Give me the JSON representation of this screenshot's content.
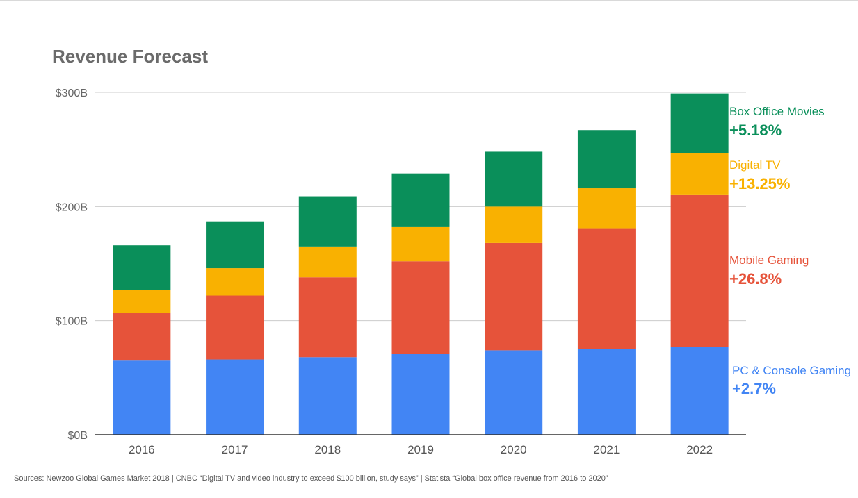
{
  "chart_data": {
    "type": "bar",
    "stacked": true,
    "title": "Revenue Forecast",
    "categories": [
      "2016",
      "2017",
      "2018",
      "2019",
      "2020",
      "2021",
      "2022"
    ],
    "ylim": [
      0,
      300
    ],
    "yticks": [
      {
        "value": 0,
        "label": "$0B"
      },
      {
        "value": 100,
        "label": "$100B"
      },
      {
        "value": 200,
        "label": "$200B"
      },
      {
        "value": 300,
        "label": "$300B"
      }
    ],
    "grid": true,
    "legend_placement": "right",
    "series": [
      {
        "name": "PC & Console Gaming",
        "growth": "+2.7%",
        "color": "#4285F4",
        "values": [
          65,
          66,
          68,
          71,
          74,
          75,
          77
        ]
      },
      {
        "name": "Mobile Gaming",
        "growth": "+26.8%",
        "color": "#E6533A",
        "values": [
          42,
          56,
          70,
          81,
          94,
          106,
          133
        ]
      },
      {
        "name": "Digital TV",
        "growth": "+13.25%",
        "color": "#F9B101",
        "values": [
          20,
          24,
          27,
          30,
          32,
          35,
          37
        ]
      },
      {
        "name": "Box Office Movies",
        "growth": "+5.18%",
        "color": "#0A8F5A",
        "values": [
          39,
          41,
          44,
          47,
          48,
          51,
          52
        ]
      }
    ]
  },
  "footer": {
    "sources": "Sources: Newzoo Global Games Market 2018 | CNBC “Digital TV and video industry to exceed $100 billion, study says” | Statista “Global box office revenue from 2016 to 2020”"
  }
}
